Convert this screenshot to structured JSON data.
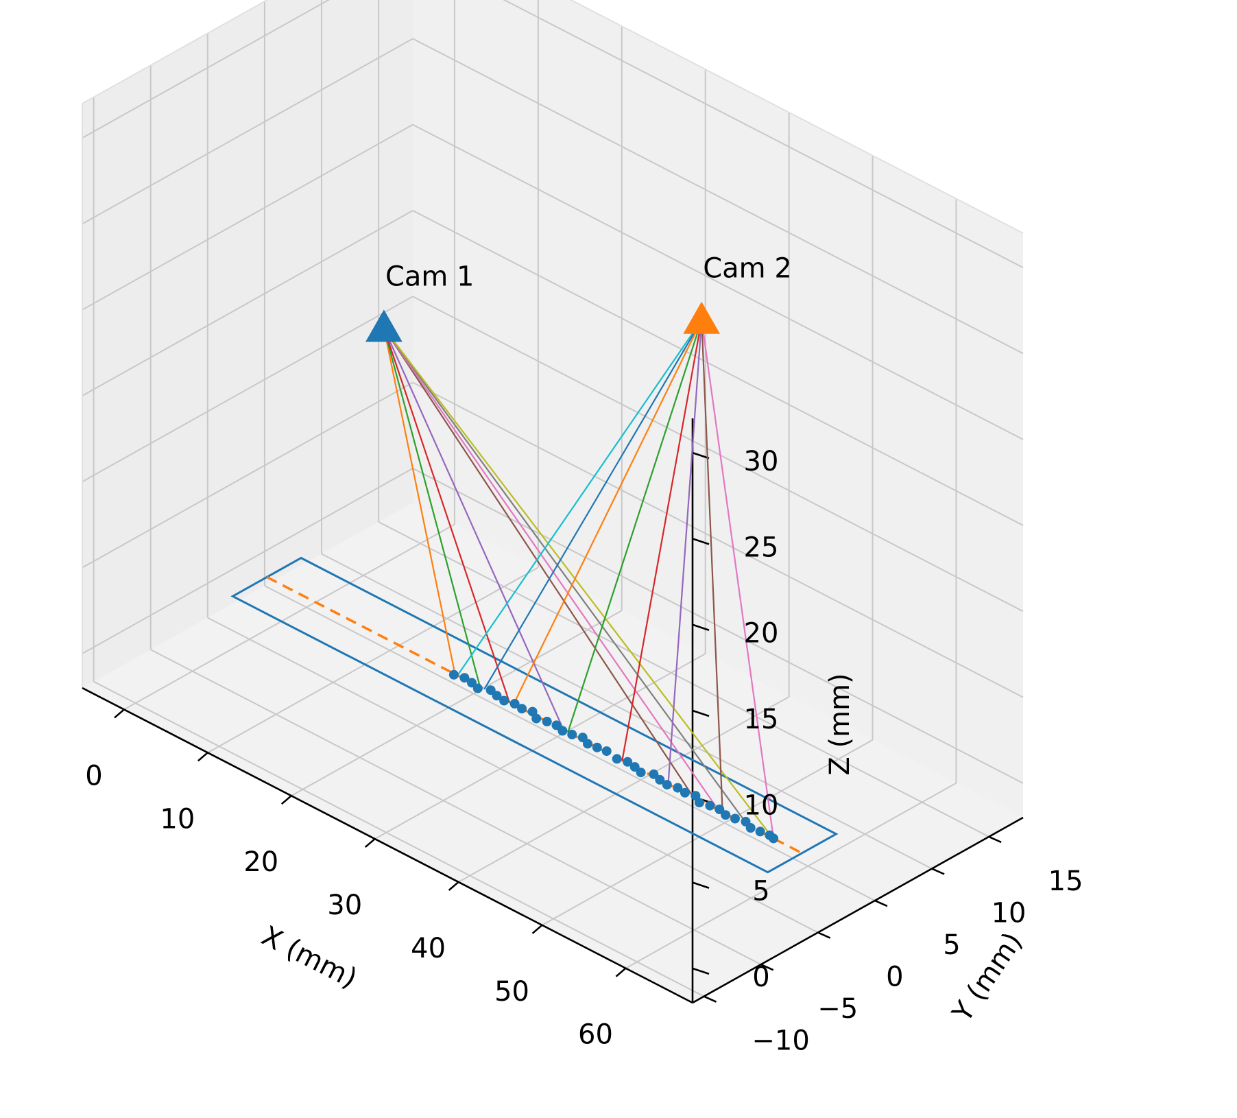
{
  "chart_data": {
    "type": "scatter",
    "projection": "3d",
    "title": "",
    "xlabel": "X (mm)",
    "ylabel": "Y (mm)",
    "zlabel": "Z (mm)",
    "xlim": [
      -5,
      68
    ],
    "ylim": [
      -11,
      18
    ],
    "zlim": [
      -2,
      32
    ],
    "x_ticks": [
      0,
      10,
      20,
      30,
      40,
      50,
      60
    ],
    "x_tick_labels": [
      "0",
      "10",
      "20",
      "30",
      "40",
      "50",
      "60"
    ],
    "y_ticks": [
      -10,
      -5,
      0,
      5,
      10,
      15
    ],
    "y_tick_labels": [
      "−10",
      "−5",
      "0",
      "5",
      "10",
      "15"
    ],
    "z_ticks": [
      0,
      5,
      10,
      15,
      20,
      25,
      30
    ],
    "z_tick_labels": [
      "0",
      "5",
      "10",
      "15",
      "20",
      "25",
      "30"
    ],
    "grid": true,
    "pane_color": "#f2f2f2",
    "cameras": [
      {
        "label": "Cam 1",
        "x": 12,
        "y": 3,
        "z": 18,
        "color": "#1f77b4",
        "marker": "triangle"
      },
      {
        "label": "Cam 2",
        "x": 50,
        "y": 3,
        "z": 28,
        "color": "#ff7f0e",
        "marker": "triangle"
      }
    ],
    "plate": {
      "x": [
        -2,
        62
      ],
      "y": [
        0,
        6
      ],
      "z": 0,
      "color": "#1f77b4"
    },
    "centerline": {
      "x": [
        -2,
        62
      ],
      "y": 3,
      "z": 0,
      "color": "#ff7f0e",
      "style": "dashed"
    },
    "track_points": {
      "color": "#1f77b4",
      "x": [
        20.5,
        21.5,
        22.5,
        23.5,
        24.5,
        25.5,
        26.5,
        27.5,
        28.5,
        29.5,
        30.5,
        31.5,
        32.5,
        33.5,
        34.5,
        35.5,
        36.5,
        37.5,
        38.5,
        40,
        41,
        42,
        43,
        44,
        45,
        46,
        47,
        48,
        49,
        50,
        51,
        52,
        53,
        54,
        55,
        56,
        57,
        58,
        58.6
      ],
      "y": [
        2.9,
        3.1,
        3.0,
        2.8,
        3.2,
        3.0,
        2.9,
        3.1,
        3.0,
        3.2,
        2.8,
        3.0,
        3.1,
        2.9,
        3.0,
        3.2,
        2.9,
        3.0,
        3.1,
        2.9,
        3.1,
        3.0,
        2.8,
        3.2,
        3.0,
        2.9,
        3.1,
        3.0,
        3.2,
        2.8,
        3.0,
        3.1,
        2.9,
        3.0,
        3.2,
        2.9,
        3.0,
        3.1,
        3.0
      ],
      "z": 0
    },
    "rays": [
      {
        "camera": "Cam 1",
        "x": 20.5,
        "y": 3,
        "z": 0,
        "color": "#ff7f0e"
      },
      {
        "camera": "Cam 1",
        "x": 23.5,
        "y": 3,
        "z": 0,
        "color": "#2ca02c"
      },
      {
        "camera": "Cam 1",
        "x": 27,
        "y": 3,
        "z": 0,
        "color": "#d62728"
      },
      {
        "camera": "Cam 1",
        "x": 33.5,
        "y": 3,
        "z": 0,
        "color": "#9467bd"
      },
      {
        "camera": "Cam 1",
        "x": 49,
        "y": 3,
        "z": 0,
        "color": "#8c564b"
      },
      {
        "camera": "Cam 1",
        "x": 52,
        "y": 3,
        "z": 0,
        "color": "#e377c2"
      },
      {
        "camera": "Cam 1",
        "x": 55.5,
        "y": 3,
        "z": 0,
        "color": "#7f7f7f"
      },
      {
        "camera": "Cam 1",
        "x": 58.5,
        "y": 3,
        "z": 0,
        "color": "#bcbd22"
      },
      {
        "camera": "Cam 2",
        "x": 20.8,
        "y": 3,
        "z": 0,
        "color": "#17becf"
      },
      {
        "camera": "Cam 2",
        "x": 24,
        "y": 3,
        "z": 0,
        "color": "#1f77b4"
      },
      {
        "camera": "Cam 2",
        "x": 27.5,
        "y": 3,
        "z": 0,
        "color": "#ff7f0e"
      },
      {
        "camera": "Cam 2",
        "x": 34,
        "y": 3,
        "z": 0,
        "color": "#2ca02c"
      },
      {
        "camera": "Cam 2",
        "x": 40.5,
        "y": 3,
        "z": 0,
        "color": "#d62728"
      },
      {
        "camera": "Cam 2",
        "x": 46,
        "y": 3,
        "z": 0,
        "color": "#9467bd"
      },
      {
        "camera": "Cam 2",
        "x": 52.5,
        "y": 3,
        "z": 0,
        "color": "#8c564b"
      },
      {
        "camera": "Cam 2",
        "x": 58.6,
        "y": 3,
        "z": 0,
        "color": "#e377c2"
      }
    ]
  }
}
